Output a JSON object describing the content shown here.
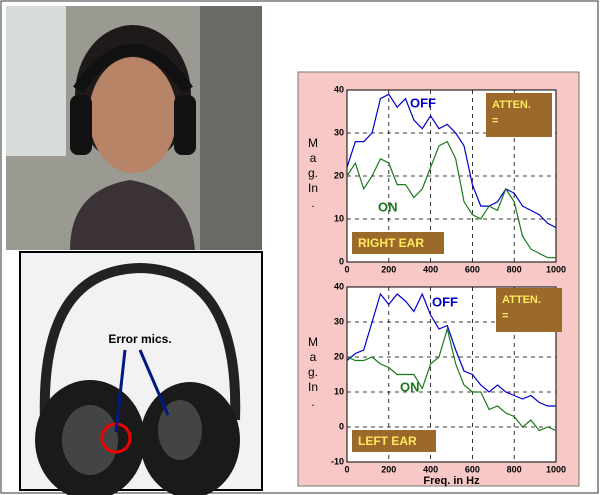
{
  "annotation": "Error mics.",
  "chart_data": [
    {
      "type": "line",
      "ylabel": "Mag. In .",
      "box_label": "RIGHT EAR",
      "atten_label": "ATTEN.",
      "atten_value": "=",
      "x": [
        0,
        40,
        80,
        120,
        160,
        200,
        240,
        280,
        320,
        360,
        400,
        440,
        480,
        520,
        560,
        600,
        640,
        680,
        720,
        760,
        800,
        840,
        880,
        920,
        960,
        1000
      ],
      "xlim": [
        0,
        1000
      ],
      "xticks": [
        0,
        200,
        400,
        600,
        800,
        1000
      ],
      "ylim": [
        0,
        40
      ],
      "yticks": [
        0,
        10,
        20,
        30,
        40
      ],
      "grid": true,
      "series": [
        {
          "name": "OFF",
          "color": "#0000cc",
          "values": [
            22,
            28,
            28,
            30,
            38,
            39,
            36,
            38,
            33,
            31,
            34,
            31,
            32,
            30,
            27,
            18,
            13,
            13,
            14,
            17,
            16,
            13,
            12,
            11,
            9,
            8
          ]
        },
        {
          "name": "ON",
          "color": "#1a7a1a",
          "values": [
            20,
            23,
            17,
            20,
            24,
            23,
            18,
            18,
            15,
            17,
            22,
            27,
            28,
            24,
            14,
            11,
            10,
            13,
            12,
            17,
            14,
            6,
            3,
            2,
            1,
            1
          ]
        }
      ]
    },
    {
      "type": "line",
      "ylabel": "Mag. In .",
      "box_label": "LEFT EAR",
      "atten_label": "ATTEN.",
      "atten_value": "=",
      "xlabel": "Freq. in Hz",
      "x": [
        0,
        40,
        80,
        120,
        160,
        200,
        240,
        280,
        320,
        360,
        400,
        440,
        480,
        520,
        560,
        600,
        640,
        680,
        720,
        760,
        800,
        840,
        880,
        920,
        960,
        1000
      ],
      "xlim": [
        0,
        1000
      ],
      "xticks": [
        0,
        200,
        400,
        600,
        800,
        1000
      ],
      "ylim": [
        -10,
        40
      ],
      "yticks": [
        -10,
        0,
        10,
        20,
        30,
        40
      ],
      "grid": true,
      "series": [
        {
          "name": "OFF",
          "color": "#0000cc",
          "values": [
            19,
            21,
            22,
            30,
            38,
            35,
            38,
            36,
            33,
            38,
            32,
            28,
            29,
            22,
            16,
            15,
            12,
            10,
            12,
            10,
            9,
            8,
            9,
            7,
            6,
            6
          ]
        },
        {
          "name": "ON",
          "color": "#1a7a1a",
          "values": [
            20,
            19,
            19,
            20,
            18,
            17,
            15,
            15,
            15,
            11,
            18,
            20,
            28,
            18,
            12,
            10,
            10,
            5,
            6,
            4,
            3,
            0,
            2,
            -1,
            0,
            -1
          ]
        }
      ]
    }
  ]
}
